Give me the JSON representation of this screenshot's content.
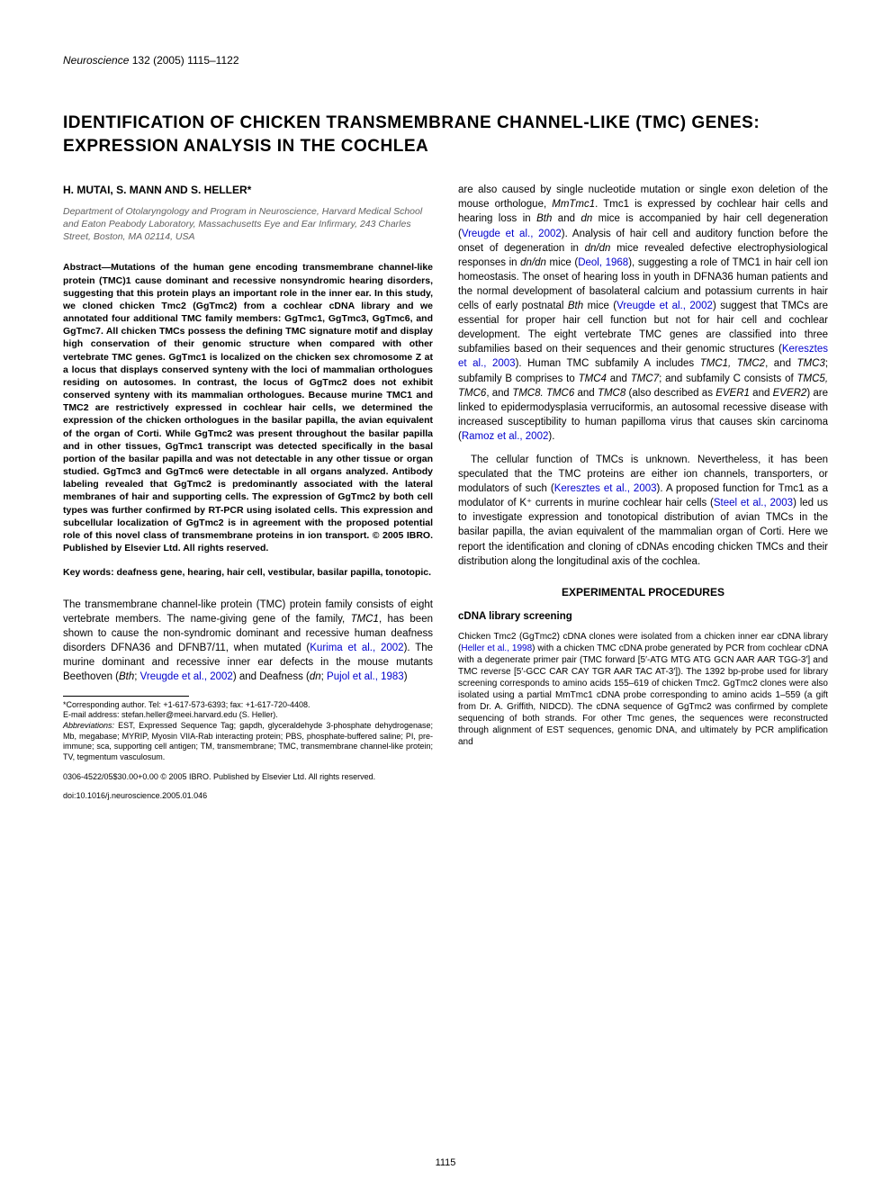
{
  "journal": {
    "name": "Neuroscience",
    "vol_pages": "132 (2005) 1115–1122"
  },
  "title": "IDENTIFICATION OF CHICKEN TRANSMEMBRANE CHANNEL-LIKE (TMC) GENES: EXPRESSION ANALYSIS IN THE COCHLEA",
  "authors": "H. MUTAI, S. MANN AND S. HELLER*",
  "affiliation": "Department of Otolaryngology and Program in Neuroscience, Harvard Medical School and Eaton Peabody Laboratory, Massachusetts Eye and Ear Infirmary, 243 Charles Street, Boston, MA 02114, USA",
  "abstract": "Abstract—Mutations of the human gene encoding transmembrane channel-like protein (TMC)1 cause dominant and recessive nonsyndromic hearing disorders, suggesting that this protein plays an important role in the inner ear. In this study, we cloned chicken Tmc2 (GgTmc2) from a cochlear cDNA library and we annotated four additional TMC family members: GgTmc1, GgTmc3, GgTmc6, and GgTmc7. All chicken TMCs possess the defining TMC signature motif and display high conservation of their genomic structure when compared with other vertebrate TMC genes. GgTmc1 is localized on the chicken sex chromosome Z at a locus that displays conserved synteny with the loci of mammalian orthologues residing on autosomes. In contrast, the locus of GgTmc2 does not exhibit conserved synteny with its mammalian orthologues. Because murine TMC1 and TMC2 are restrictively expressed in cochlear hair cells, we determined the expression of the chicken orthologues in the basilar papilla, the avian equivalent of the organ of Corti. While GgTmc2 was present throughout the basilar papilla and in other tissues, GgTmc1 transcript was detected specifically in the basal portion of the basilar papilla and was not detectable in any other tissue or organ studied. GgTmc3 and GgTmc6 were detectable in all organs analyzed. Antibody labeling revealed that GgTmc2 is predominantly associated with the lateral membranes of hair and supporting cells. The expression of GgTmc2 by both cell types was further confirmed by RT-PCR using isolated cells. This expression and subcellular localization of GgTmc2 is in agreement with the proposed potential role of this novel class of transmembrane proteins in ion transport. © 2005 IBRO. Published by Elsevier Ltd. All rights reserved.",
  "keywords": "Key words: deafness gene, hearing, hair cell, vestibular, basilar papilla, tonotopic.",
  "intro_p1_a": "The transmembrane channel-like protein (TMC) protein family consists of eight vertebrate members. The name-giving gene of the family, ",
  "intro_p1_b": "TMC1",
  "intro_p1_c": ", has been shown to cause the non-syndromic dominant and recessive human deafness disorders DFNA36 and DFNB7/11, when mutated (",
  "intro_ref1": "Kurima et al., 2002",
  "intro_p1_d": "). The murine dominant and recessive inner ear defects in the mouse mutants Beethoven (",
  "intro_p1_e": "Bth",
  "intro_p1_f": "; ",
  "intro_ref2": "Vreugde et al., 2002",
  "intro_p1_g": ") and Deafness (",
  "intro_p1_h": "dn",
  "intro_p1_i": "; ",
  "intro_ref3": "Pujol et al., 1983",
  "intro_p1_j": ")",
  "corr_author": "*Corresponding author. Tel: +1-617-573-6393; fax: +1-617-720-4408.",
  "email": "E-mail address: stefan.heller@meei.harvard.edu (S. Heller).",
  "abbrev_label": "Abbreviations:",
  "abbrev": " EST, Expressed Sequence Tag; gapdh, glyceraldehyde 3-phosphate dehydrogenase; Mb, megabase; MYRIP, Myosin VIIA-Rab interacting protein; PBS, phosphate-buffered saline; PI, pre-immune; sca, supporting cell antigen; TM, transmembrane; TMC, transmembrane channel-like protein; TV, tegmentum vasculosum.",
  "col2_p1_a": "are also caused by single nucleotide mutation or single exon deletion of the mouse orthologue, ",
  "col2_p1_b": "MmTmc1",
  "col2_p1_c": ". Tmc1 is expressed by cochlear hair cells and hearing loss in ",
  "col2_p1_d": "Bth",
  "col2_p1_e": " and ",
  "col2_p1_f": "dn",
  "col2_p1_g": " mice is accompanied by hair cell degeneration (",
  "col2_ref1": "Vreugde et al., 2002",
  "col2_p1_h": "). Analysis of hair cell and auditory function before the onset of degeneration in ",
  "col2_p1_i": "dn/dn",
  "col2_p1_j": " mice revealed defective electrophysiological responses in ",
  "col2_p1_k": "dn/dn",
  "col2_p1_l": " mice (",
  "col2_ref2": "Deol, 1968",
  "col2_p1_m": "), suggesting a role of TMC1 in hair cell ion homeostasis. The onset of hearing loss in youth in DFNA36 human patients and the normal development of basolateral calcium and potassium currents in hair cells of early postnatal ",
  "col2_p1_n": "Bth",
  "col2_p1_o": " mice (",
  "col2_ref3": "Vreugde et al., 2002",
  "col2_p1_p": ") suggest that TMCs are essential for proper hair cell function but not for hair cell and cochlear development. The eight vertebrate TMC genes are classified into three subfamilies based on their sequences and their genomic structures (",
  "col2_ref4": "Keresztes et al., 2003",
  "col2_p1_q": "). Human TMC subfamily A includes ",
  "col2_p1_r": "TMC1, TMC2",
  "col2_p1_s": ", and ",
  "col2_p1_t": "TMC3",
  "col2_p1_u": "; subfamily B comprises to ",
  "col2_p1_v": "TMC4",
  "col2_p1_w": " and ",
  "col2_p1_x": "TMC7",
  "col2_p1_y": "; and subfamily C consists of ",
  "col2_p1_z": "TMC5, TMC6",
  "col2_p1_aa": ", and ",
  "col2_p1_ab": "TMC8. TMC6",
  "col2_p1_ac": " and ",
  "col2_p1_ad": "TMC8",
  "col2_p1_ae": " (also described as ",
  "col2_p1_af": "EVER1",
  "col2_p1_ag": " and ",
  "col2_p1_ah": "EVER2",
  "col2_p1_ai": ") are linked to epidermodysplasia verruciformis, an autosomal recessive disease with increased susceptibility to human papilloma virus that causes skin carcinoma (",
  "col2_ref5": "Ramoz et al., 2002",
  "col2_p1_aj": ").",
  "col2_p2_a": "The cellular function of TMCs is unknown. Nevertheless, it has been speculated that the TMC proteins are either ion channels, transporters, or modulators of such (",
  "col2_ref6": "Keresztes et al., 2003",
  "col2_p2_b": "). A proposed function for Tmc1 as a modulator of K⁺ currents in murine cochlear hair cells (",
  "col2_ref7": "Steel et al., 2003",
  "col2_p2_c": ") led us to investigate expression and tonotopical distribution of avian TMCs in the basilar papilla, the avian equivalent of the mammalian organ of Corti. Here we report the identification and cloning of cDNAs encoding chicken TMCs and their distribution along the longitudinal axis of the cochlea.",
  "exp_heading": "EXPERIMENTAL PROCEDURES",
  "cdna_heading": "cDNA library screening",
  "methods_a": "Chicken Tmc2 (GgTmc2) cDNA clones were isolated from a chicken inner ear cDNA library (",
  "methods_ref1": "Heller et al., 1998",
  "methods_b": ") with a chicken TMC cDNA probe generated by PCR from cochlear cDNA with a degenerate primer pair (TMC forward [5′-ATG MTG ATG GCN AAR AAR TGG-3′] and TMC reverse [5′-GCC CAR CAY TGR AAR TAC AT-3′]). The 1392 bp-probe used for library screening corresponds to amino acids 155–619 of chicken Tmc2. GgTmc2 clones were also isolated using a partial MmTmc1 cDNA probe corresponding to amino acids 1–559 (a gift from Dr. A. Griffith, NIDCD). The cDNA sequence of GgTmc2 was confirmed by complete sequencing of both strands. For other Tmc genes, the sequences were reconstructed through alignment of EST sequences, genomic DNA, and ultimately by PCR amplification and",
  "footer1": "0306-4522/05$30.00+0.00 © 2005 IBRO. Published by Elsevier Ltd. All rights reserved.",
  "footer2": "doi:10.1016/j.neuroscience.2005.01.046",
  "page_num": "1115"
}
